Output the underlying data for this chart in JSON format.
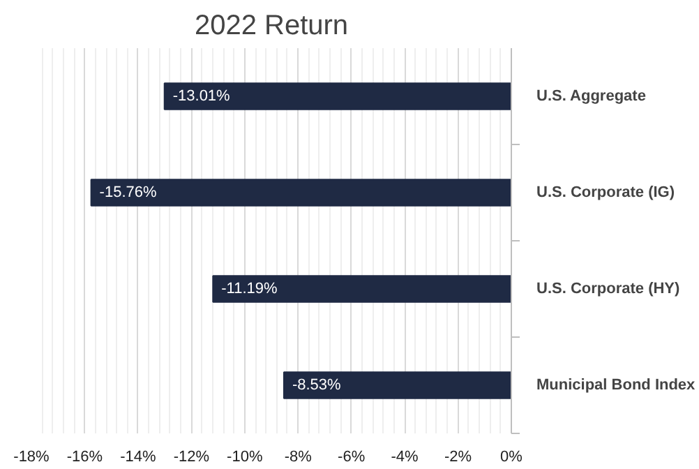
{
  "chart_data": {
    "type": "bar",
    "orientation": "horizontal",
    "title": "2022 Return",
    "categories": [
      "U.S. Aggregate",
      "U.S. Corporate (IG)",
      "U.S. Corporate (HY)",
      "Municipal Bond Index"
    ],
    "values": [
      -13.01,
      -15.76,
      -11.19,
      -8.53
    ],
    "value_labels": [
      "-13.01%",
      "-15.76%",
      "-11.19%",
      "-8.53%"
    ],
    "color": "#1f2a44",
    "xlim": [
      -18,
      0
    ],
    "xticks": [
      {
        "value": -18,
        "label": "-18%"
      },
      {
        "value": -16,
        "label": "-16%"
      },
      {
        "value": -14,
        "label": "-14%"
      },
      {
        "value": -12,
        "label": "-12%"
      },
      {
        "value": -10,
        "label": "-10%"
      },
      {
        "value": -8,
        "label": "-8%"
      },
      {
        "value": -6,
        "label": "-6%"
      },
      {
        "value": -4,
        "label": "-4%"
      },
      {
        "value": -2,
        "label": "-2%"
      },
      {
        "value": 0,
        "label": "0%"
      }
    ],
    "grid": "x"
  }
}
